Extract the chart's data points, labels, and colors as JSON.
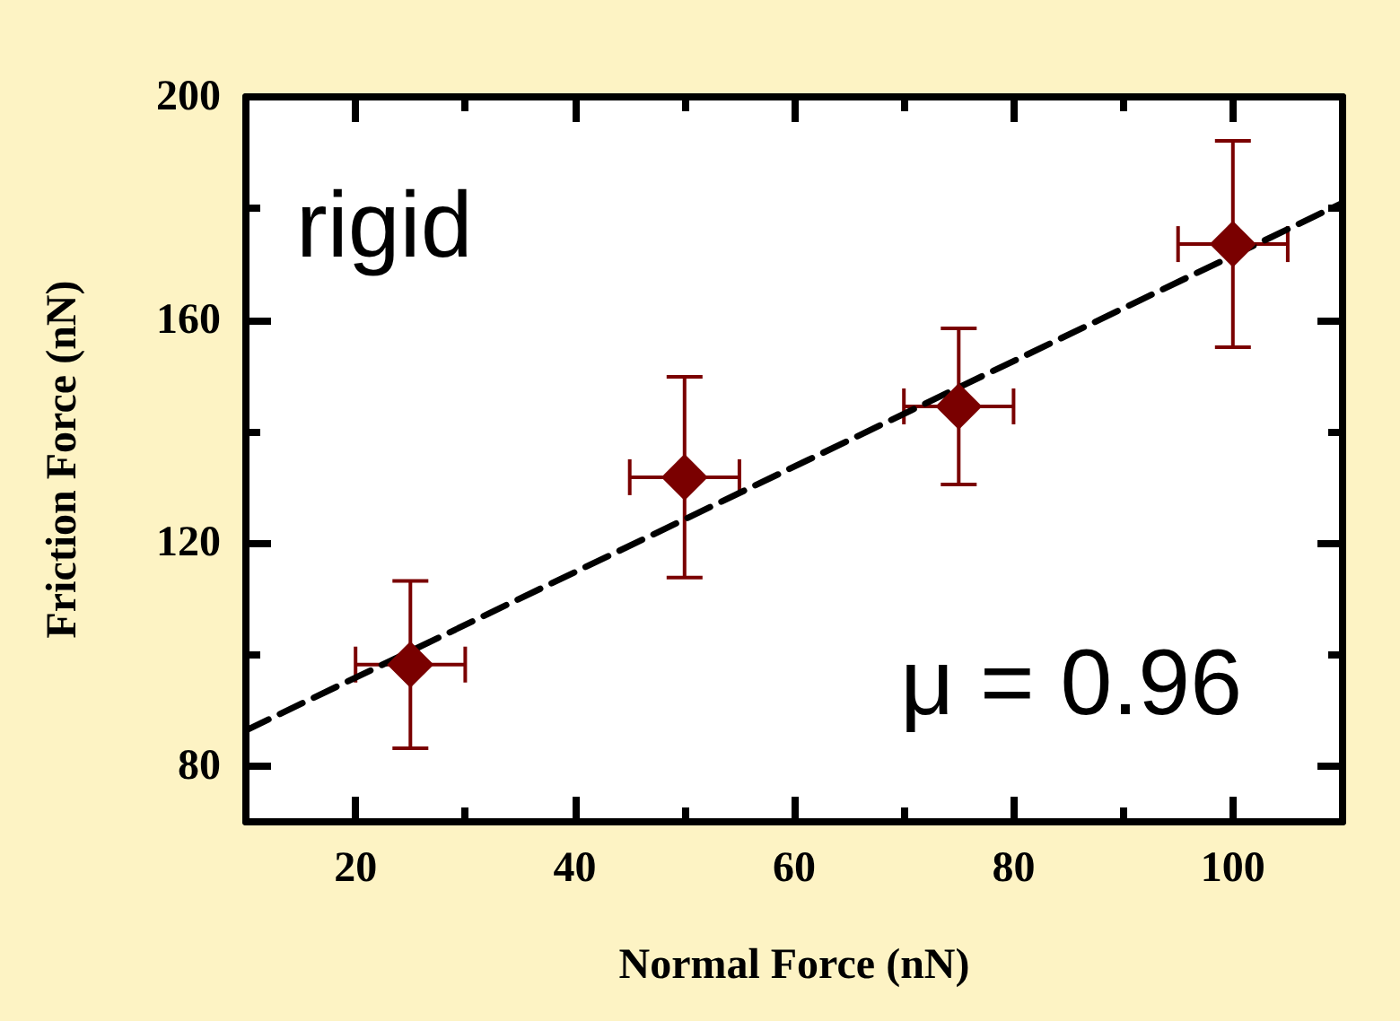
{
  "chart_data": {
    "type": "scatter",
    "xlabel": "Normal Force (nN)",
    "ylabel": "Friction Force (nN)",
    "xlim": [
      10,
      110
    ],
    "xticks": [
      {
        "value": 10,
        "label": null
      },
      20,
      {
        "value": 30,
        "label": null
      },
      40,
      {
        "value": 50,
        "label": null
      },
      60,
      {
        "value": 70,
        "label": null
      },
      80,
      {
        "value": 90,
        "label": null
      },
      100,
      {
        "value": 110,
        "label": null
      }
    ],
    "ylim": [
      70,
      200
    ],
    "yticks": [
      80,
      {
        "value": 100,
        "label": null
      },
      120,
      {
        "value": 140,
        "label": null
      },
      160,
      {
        "value": 180,
        "label": null
      },
      200
    ],
    "grid": false,
    "annotations": [
      "rigid",
      "μ = 0.96"
    ],
    "series": [
      {
        "color": "#7a0000",
        "marker": "diamond",
        "x": [
          25,
          50,
          75,
          100
        ],
        "values": [
          98.2,
          131.8,
          144.5,
          173.6
        ],
        "errors": [
          15,
          18,
          14,
          18.5
        ],
        "xerrors": [
          5,
          5,
          5,
          5
        ]
      },
      {
        "type": "line",
        "color": "#000000",
        "marker": "none",
        "line_style": "dashed",
        "x": [
          10,
          110
        ],
        "values": [
          86.4,
          181
        ]
      }
    ]
  }
}
